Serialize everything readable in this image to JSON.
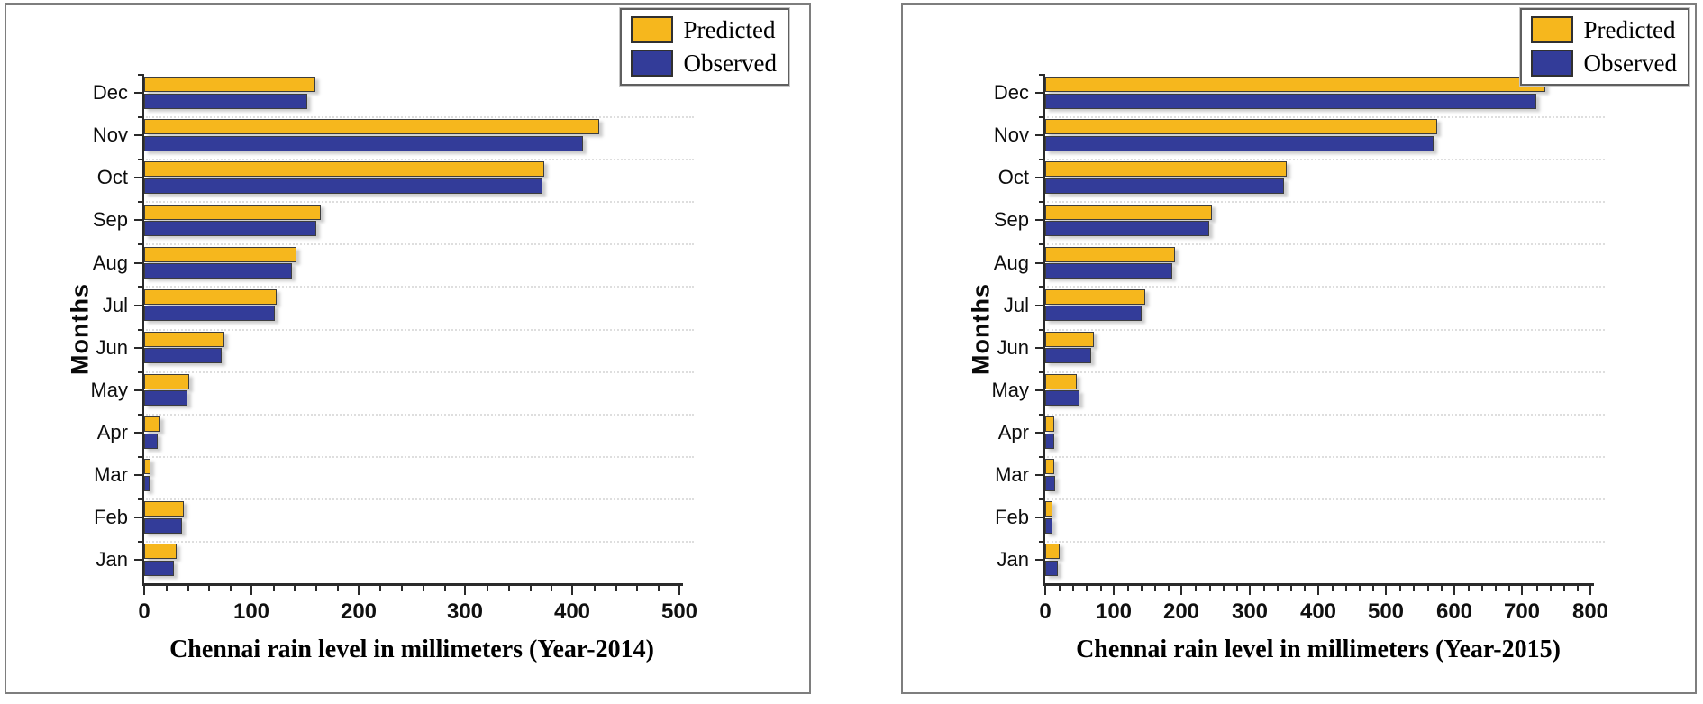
{
  "figure": {
    "background": "#ffffff",
    "ylabel": "Months",
    "legend_items": [
      "Predicted",
      "Observed"
    ]
  },
  "colors": {
    "predicted": "#F6B71D",
    "observed": "#333C99",
    "bar_border": "#3d3d3d",
    "axis": "#2a2a2a",
    "grid": "#dedede"
  },
  "chart_data": [
    {
      "type": "bar",
      "orientation": "horizontal",
      "title": "",
      "xlabel": "Chennai rain level in millimeters (Year-2014)",
      "ylabel": "Months",
      "categories": [
        "Jan",
        "Feb",
        "Mar",
        "Apr",
        "May",
        "Jun",
        "Jul",
        "Aug",
        "Sep",
        "Oct",
        "Nov",
        "Dec"
      ],
      "category_order": "Jan at bottom, Dec at top",
      "series": [
        {
          "name": "Predicted",
          "color": "#F6B71D",
          "values": [
            30,
            37,
            6,
            15,
            42,
            75,
            124,
            142,
            165,
            374,
            425,
            160
          ]
        },
        {
          "name": "Observed",
          "color": "#333C99",
          "values": [
            28,
            35,
            5,
            13,
            40,
            72,
            122,
            138,
            161,
            372,
            410,
            152
          ]
        }
      ],
      "xlim": [
        0,
        500
      ],
      "xticks": [
        0,
        100,
        200,
        300,
        400,
        500
      ],
      "xtick_minor_step": 20,
      "grid": "dotted horizontal lines between category slots",
      "legend_position": "top-right"
    },
    {
      "type": "bar",
      "orientation": "horizontal",
      "title": "",
      "xlabel": "Chennai rain level in millimeters (Year-2015)",
      "ylabel": "Months",
      "categories": [
        "Jan",
        "Feb",
        "Mar",
        "Apr",
        "May",
        "Jun",
        "Jul",
        "Aug",
        "Sep",
        "Oct",
        "Nov",
        "Dec"
      ],
      "category_order": "Jan at bottom, Dec at top",
      "series": [
        {
          "name": "Predicted",
          "color": "#F6B71D",
          "values": [
            21,
            10,
            13,
            13,
            46,
            71,
            147,
            190,
            245,
            355,
            575,
            734
          ]
        },
        {
          "name": "Observed",
          "color": "#333C99",
          "values": [
            19,
            11,
            15,
            13,
            50,
            68,
            141,
            187,
            240,
            350,
            570,
            720
          ]
        }
      ],
      "xlim": [
        0,
        800
      ],
      "xticks": [
        0,
        100,
        200,
        300,
        400,
        500,
        600,
        700,
        800
      ],
      "xtick_minor_step": 20,
      "grid": "dotted horizontal lines between category slots",
      "legend_position": "top-right"
    }
  ]
}
